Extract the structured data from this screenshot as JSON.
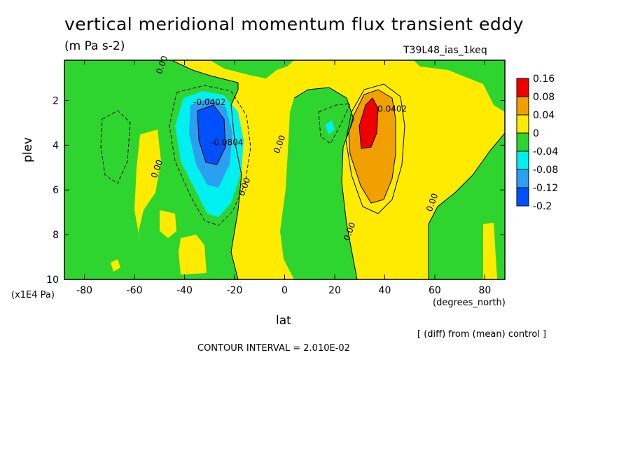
{
  "header": {
    "title": "vertical meridional momentum flux transient eddy",
    "units": "(m Pa s-2)",
    "run_id": "T39L48_ias_1keq",
    "note": "[ (diff) from (mean) control ]",
    "contour_interval": "CONTOUR INTERVAL = 2.010E-02"
  },
  "colors": {
    "red": "#ef0000",
    "orange": "#f0a000",
    "yellow": "#ffeb00",
    "green": "#2ed52e",
    "cyan": "#00f0f0",
    "lightblue": "#2ba0f0",
    "blue": "#0050ff"
  },
  "chart_data": {
    "type": "contour",
    "title": "vertical meridional momentum flux transient eddy",
    "xlabel": "lat",
    "xunit": "(degrees_north)",
    "ylabel": "plev",
    "yunit": "(x1E4 Pa)",
    "xlim": [
      -88,
      88
    ],
    "ylim": [
      0.2,
      10
    ],
    "y_inverted": true,
    "x_ticks": [
      -80,
      -60,
      -40,
      -20,
      0,
      20,
      40,
      60,
      80
    ],
    "y_ticks": [
      2,
      4,
      6,
      8,
      10
    ],
    "legend": {
      "position": "right",
      "levels": [
        0.16,
        0.08,
        0.04,
        0,
        -0.04,
        -0.08,
        -0.12,
        -0.2
      ],
      "labels": [
        "0.16",
        "0.08",
        "0.04",
        "0",
        "-0.04",
        "-0.08",
        "-0.12",
        "-0.2"
      ],
      "fills": [
        "red",
        "orange",
        "yellow",
        "green",
        "cyan",
        "lightblue",
        "blue"
      ]
    },
    "features": [
      {
        "name": "southern negative maximum",
        "lat": -30,
        "plev": 3.5,
        "min_value": -0.2
      },
      {
        "name": "northern positive maximum",
        "lat": 33,
        "plev": 3.2,
        "max_value": 0.16
      }
    ],
    "contour_labels": [
      {
        "text": "0.00",
        "lat": -50,
        "plev": 5.1
      },
      {
        "text": "0.00",
        "lat": -48,
        "plev": 0.45
      },
      {
        "text": "-0.0402",
        "lat": -30,
        "plev": 2.2
      },
      {
        "text": "-0.0804",
        "lat": -23,
        "plev": 4.0
      },
      {
        "text": "0.00",
        "lat": -15,
        "plev": 5.9
      },
      {
        "text": "0.00",
        "lat": -1,
        "plev": 4.0
      },
      {
        "text": "0.0402",
        "lat": 43,
        "plev": 2.5
      },
      {
        "text": "0.00",
        "lat": 27,
        "plev": 7.9
      },
      {
        "text": "0.00",
        "lat": 60,
        "plev": 6.6
      }
    ]
  }
}
